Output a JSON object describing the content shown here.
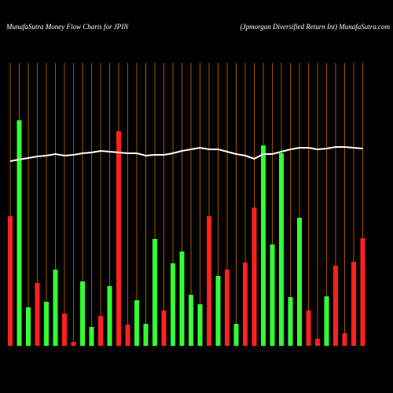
{
  "chart_data": {
    "type": "bar-line",
    "title": "MunafaSutra  Money Flow  Charts for JPIN",
    "subtitle": "(Jpmorgan  Diversified Return  Int) MunafaSutra.com",
    "categories": [
      null,
      null,
      null,
      null,
      null,
      null,
      null,
      null,
      null,
      null,
      null,
      null,
      null,
      null,
      null,
      null,
      null,
      null,
      null,
      null,
      null,
      null,
      null,
      null,
      null,
      null,
      null,
      null,
      null,
      null,
      null,
      null,
      null,
      null,
      null,
      null,
      null,
      null,
      null,
      null
    ],
    "ylim": [
      0,
      360
    ],
    "grid_color": "#a65300",
    "series": [
      {
        "kind": "bar",
        "values": [
          165,
          287,
          49,
          80,
          56,
          97,
          41,
          5,
          82,
          24,
          38,
          76,
          273,
          27,
          58,
          28,
          136,
          45,
          105,
          120,
          65,
          53,
          165,
          89,
          97,
          28,
          106,
          176,
          255,
          129,
          245,
          62,
          163,
          45,
          9,
          63,
          102,
          16,
          107,
          137
        ],
        "colors": [
          "#ff2020",
          "#33ff33",
          "#33ff33",
          "#ff2020",
          "#33ff33",
          "#33ff33",
          "#ff2020",
          "#ff2020",
          "#33ff33",
          "#33ff33",
          "#ff2020",
          "#33ff33",
          "#ff2020",
          "#ff2020",
          "#33ff33",
          "#33ff33",
          "#33ff33",
          "#ff2020",
          "#33ff33",
          "#33ff33",
          "#33ff33",
          "#33ff33",
          "#ff2020",
          "#33ff33",
          "#ff2020",
          "#33ff33",
          "#ff2020",
          "#ff2020",
          "#33ff33",
          "#33ff33",
          "#33ff33",
          "#33ff33",
          "#33ff33",
          "#ff2020",
          "#ff2020",
          "#33ff33",
          "#ff2020",
          "#ff2020",
          "#ff2020",
          "#ff2020"
        ]
      },
      {
        "kind": "line",
        "color": "#ffffff",
        "values": [
          235,
          237,
          239,
          241,
          242,
          244,
          242,
          243,
          245,
          246,
          248,
          247,
          246,
          245,
          245,
          242,
          243,
          243,
          245,
          248,
          250,
          252,
          250,
          250,
          247,
          244,
          242,
          238,
          244,
          244,
          247,
          250,
          252,
          252,
          250,
          251,
          253,
          253,
          252,
          251
        ]
      }
    ]
  }
}
